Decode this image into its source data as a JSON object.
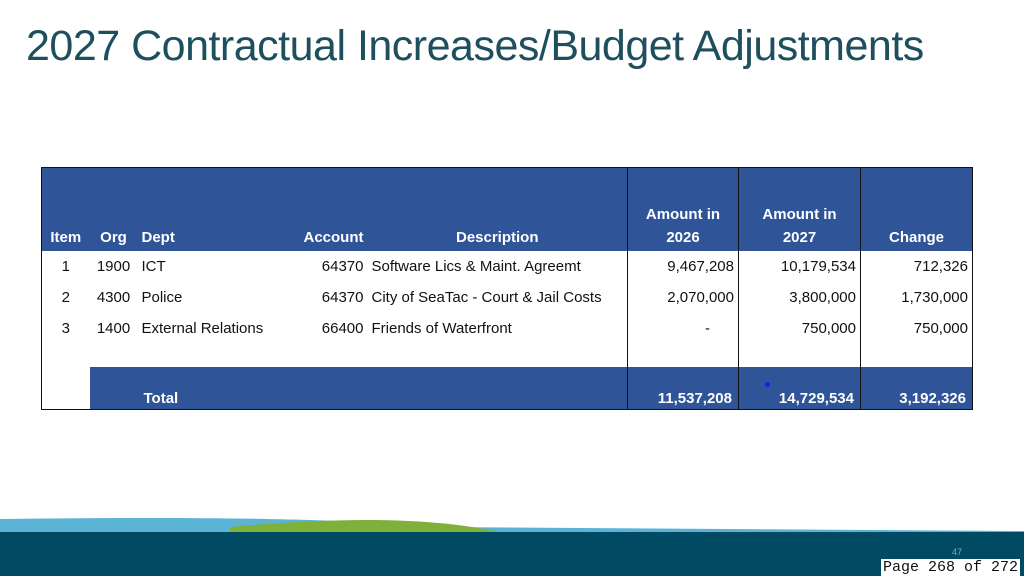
{
  "slide": {
    "title": "2027 Contractual Increases/Budget Adjustments",
    "slide_number": "47",
    "page_footer": "Page 268 of 272"
  },
  "table": {
    "headers": {
      "item": "Item",
      "org": "Org",
      "dept": "Dept",
      "account": "Account",
      "description": "Description",
      "amount_2026_line1": "Amount in",
      "amount_2026_line2": "2026",
      "amount_2027_line1": "Amount in",
      "amount_2027_line2": "2027",
      "change": "Change"
    },
    "rows": [
      {
        "item": "1",
        "org": "1900",
        "dept": "ICT",
        "account": "64370",
        "description": "Software Lics & Maint. Agreemt",
        "amount_2026": "9,467,208",
        "amount_2027": "10,179,534",
        "change": "712,326"
      },
      {
        "item": "2",
        "org": "4300",
        "dept": "Police",
        "account": "64370",
        "description": "City of SeaTac - Court & Jail Costs",
        "amount_2026": "2,070,000",
        "amount_2027": "3,800,000",
        "change": "1,730,000"
      },
      {
        "item": "3",
        "org": "1400",
        "dept": "External Relations",
        "account": "66400",
        "description": "Friends of Waterfront",
        "amount_2026": "-",
        "amount_2027": "750,000",
        "change": "750,000"
      }
    ],
    "total": {
      "label": "Total",
      "amount_2026": "11,537,208",
      "amount_2027": "14,729,534",
      "change": "3,192,326"
    }
  },
  "colors": {
    "title": "#1d4f5c",
    "header_bg": "#2f5497",
    "footer_band": "#004a63",
    "wave_blue": "#5bb3d6",
    "wave_green": "#7fb03a"
  }
}
